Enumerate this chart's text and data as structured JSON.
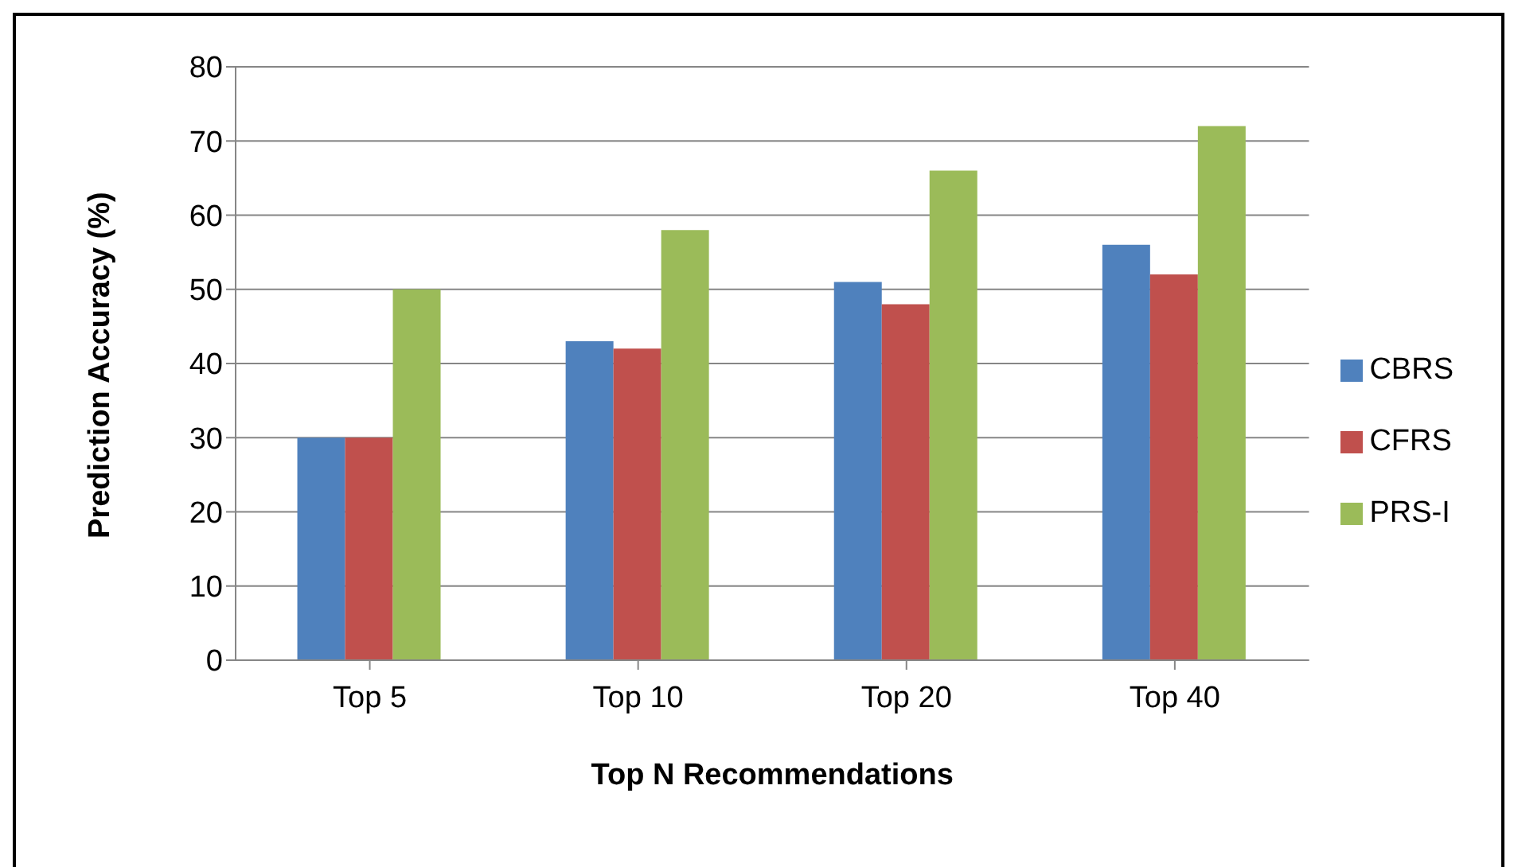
{
  "chart_data": {
    "type": "bar",
    "xlabel": "Top N Recommendations",
    "ylabel": "Prediction Accuracy (%)",
    "categories": [
      "Top 5",
      "Top 10",
      "Top 20",
      "Top 40"
    ],
    "series": [
      {
        "name": "CBRS",
        "color": "#4f81bd",
        "values": [
          30,
          43,
          51,
          56
        ]
      },
      {
        "name": "CFRS",
        "color": "#c0504d",
        "values": [
          30,
          42,
          48,
          52
        ]
      },
      {
        "name": "PRS-I",
        "color": "#9bbb59",
        "values": [
          50,
          58,
          66,
          72
        ]
      }
    ],
    "ylim": [
      0,
      80
    ],
    "yticks": [
      0,
      10,
      20,
      30,
      40,
      50,
      60,
      70,
      80
    ],
    "grid": "y",
    "legend": "right"
  }
}
